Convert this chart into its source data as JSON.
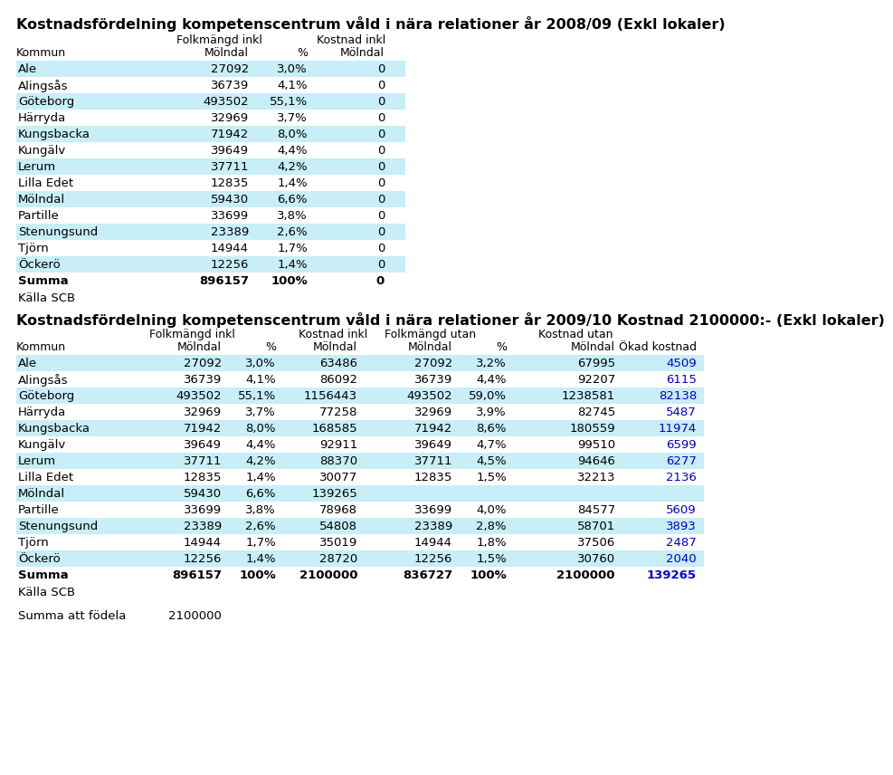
{
  "title1": "Kostnadsfördelning kompetenscentrum våld i nära relationer år 2008/09 (Exkl lokaler)",
  "title2": "Kostnadsfördelning kompetenscentrum våld i nära relationer år 2009/10 Kostnad 2100000:- (Exkl lokaler)",
  "table1_data": [
    [
      "Ale",
      "27092",
      "3,0%",
      "0"
    ],
    [
      "Alingsås",
      "36739",
      "4,1%",
      "0"
    ],
    [
      "Göteborg",
      "493502",
      "55,1%",
      "0"
    ],
    [
      "Härryda",
      "32969",
      "3,7%",
      "0"
    ],
    [
      "Kungsbacka",
      "71942",
      "8,0%",
      "0"
    ],
    [
      "Kungälv",
      "39649",
      "4,4%",
      "0"
    ],
    [
      "Lerum",
      "37711",
      "4,2%",
      "0"
    ],
    [
      "Lilla Edet",
      "12835",
      "1,4%",
      "0"
    ],
    [
      "Mölndal",
      "59430",
      "6,6%",
      "0"
    ],
    [
      "Partille",
      "33699",
      "3,8%",
      "0"
    ],
    [
      "Stenungsund",
      "23389",
      "2,6%",
      "0"
    ],
    [
      "Tjörn",
      "14944",
      "1,7%",
      "0"
    ],
    [
      "Öckerö",
      "12256",
      "1,4%",
      "0"
    ],
    [
      "Summa",
      "896157",
      "100%",
      "0"
    ]
  ],
  "table1_summa_row": 13,
  "kalla_scb_1": "Källa SCB",
  "table2_data": [
    [
      "Ale",
      "27092",
      "3,0%",
      "63486",
      "27092",
      "3,2%",
      "67995",
      "4509"
    ],
    [
      "Alingsås",
      "36739",
      "4,1%",
      "86092",
      "36739",
      "4,4%",
      "92207",
      "6115"
    ],
    [
      "Göteborg",
      "493502",
      "55,1%",
      "1156443",
      "493502",
      "59,0%",
      "1238581",
      "82138"
    ],
    [
      "Härryda",
      "32969",
      "3,7%",
      "77258",
      "32969",
      "3,9%",
      "82745",
      "5487"
    ],
    [
      "Kungsbacka",
      "71942",
      "8,0%",
      "168585",
      "71942",
      "8,6%",
      "180559",
      "11974"
    ],
    [
      "Kungälv",
      "39649",
      "4,4%",
      "92911",
      "39649",
      "4,7%",
      "99510",
      "6599"
    ],
    [
      "Lerum",
      "37711",
      "4,2%",
      "88370",
      "37711",
      "4,5%",
      "94646",
      "6277"
    ],
    [
      "Lilla Edet",
      "12835",
      "1,4%",
      "30077",
      "12835",
      "1,5%",
      "32213",
      "2136"
    ],
    [
      "Mölndal",
      "59430",
      "6,6%",
      "139265",
      "",
      "",
      "",
      ""
    ],
    [
      "Partille",
      "33699",
      "3,8%",
      "78968",
      "33699",
      "4,0%",
      "84577",
      "5609"
    ],
    [
      "Stenungsund",
      "23389",
      "2,6%",
      "54808",
      "23389",
      "2,8%",
      "58701",
      "3893"
    ],
    [
      "Tjörn",
      "14944",
      "1,7%",
      "35019",
      "14944",
      "1,8%",
      "37506",
      "2487"
    ],
    [
      "Öckerö",
      "12256",
      "1,4%",
      "28720",
      "12256",
      "1,5%",
      "30760",
      "2040"
    ],
    [
      "Summa",
      "896157",
      "100%",
      "2100000",
      "836727",
      "100%",
      "2100000",
      "139265"
    ]
  ],
  "table2_summa_row": 13,
  "kalla_scb_2": "Källa SCB",
  "summa_att_fodela": "Summa att födela",
  "summa_att_fodela_val": "2100000",
  "bg_color_even": "#c8eef8",
  "bg_color_odd": "#ffffff",
  "text_color_black": "#000000",
  "text_color_blue": "#0000cc",
  "font_size_title": 11.5,
  "font_size_header": 9,
  "font_size_data": 9.5
}
